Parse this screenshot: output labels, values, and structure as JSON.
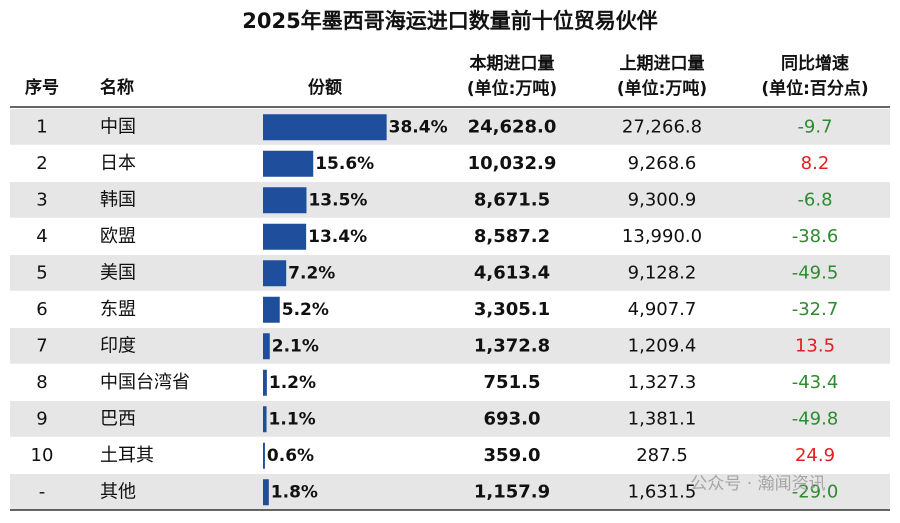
{
  "title": "2025年墨西哥海运进口数量前十位贸易伙伴",
  "table": {
    "headers": {
      "rank": "序号",
      "name": "名称",
      "share": "份额",
      "current": "本期进口量",
      "current_unit": "(单位:万吨)",
      "previous": "上期进口量",
      "previous_unit": "(单位:万吨)",
      "yoy": "同比增速",
      "yoy_unit": "(单位:百分点)"
    },
    "rows": [
      {
        "rank": "1",
        "name": "中国",
        "share": 38.4,
        "share_label": "38.4%",
        "current": "24,628.0",
        "previous": "27,266.8",
        "yoy": "-9.7"
      },
      {
        "rank": "2",
        "name": "日本",
        "share": 15.6,
        "share_label": "15.6%",
        "current": "10,032.9",
        "previous": "9,268.6",
        "yoy": "8.2"
      },
      {
        "rank": "3",
        "name": "韩国",
        "share": 13.5,
        "share_label": "13.5%",
        "current": "8,671.5",
        "previous": "9,300.9",
        "yoy": "-6.8"
      },
      {
        "rank": "4",
        "name": "欧盟",
        "share": 13.4,
        "share_label": "13.4%",
        "current": "8,587.2",
        "previous": "13,990.0",
        "yoy": "-38.6"
      },
      {
        "rank": "5",
        "name": "美国",
        "share": 7.2,
        "share_label": "7.2%",
        "current": "4,613.4",
        "previous": "9,128.2",
        "yoy": "-49.5"
      },
      {
        "rank": "6",
        "name": "东盟",
        "share": 5.2,
        "share_label": "5.2%",
        "current": "3,305.1",
        "previous": "4,907.7",
        "yoy": "-32.7"
      },
      {
        "rank": "7",
        "name": "印度",
        "share": 2.1,
        "share_label": "2.1%",
        "current": "1,372.8",
        "previous": "1,209.4",
        "yoy": "13.5"
      },
      {
        "rank": "8",
        "name": "中国台湾省",
        "share": 1.2,
        "share_label": "1.2%",
        "current": "751.5",
        "previous": "1,327.3",
        "yoy": "-43.4"
      },
      {
        "rank": "9",
        "name": "巴西",
        "share": 1.1,
        "share_label": "1.1%",
        "current": "693.0",
        "previous": "1,381.1",
        "yoy": "-49.8"
      },
      {
        "rank": "10",
        "name": "土耳其",
        "share": 0.6,
        "share_label": "0.6%",
        "current": "359.0",
        "previous": "287.5",
        "yoy": "24.9"
      },
      {
        "rank": "-",
        "name": "其他",
        "share": 1.8,
        "share_label": "1.8%",
        "current": "1,157.9",
        "previous": "1,631.5",
        "yoy": "-29.0"
      }
    ]
  },
  "watermark": "公众号 · 瀚闻资讯"
}
